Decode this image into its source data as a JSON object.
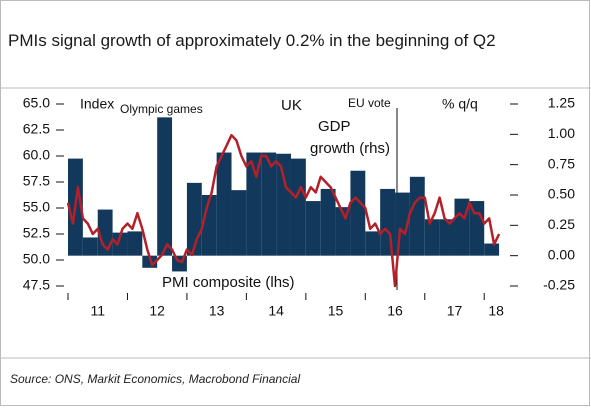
{
  "chart_data": {
    "type": "bar_line",
    "title": "PMIs signal growth of approximately 0.2% in the beginning of Q2",
    "source": "Source: ONS, Markit Economics, Macrobond Financial",
    "annotations": [
      "Index",
      "Olympic games",
      "UK",
      "EU vote",
      "% q/q",
      "GDP",
      "growth (rhs)",
      "PMI composite (lhs)"
    ],
    "xlim": [
      2011,
      2018.4
    ],
    "xticks": [
      {
        "value": 2011.5,
        "label": "11"
      },
      {
        "value": 2012.5,
        "label": "12"
      },
      {
        "value": 2013.5,
        "label": "13"
      },
      {
        "value": 2014.5,
        "label": "14"
      },
      {
        "value": 2015.5,
        "label": "15"
      },
      {
        "value": 2016.5,
        "label": "16"
      },
      {
        "value": 2017.5,
        "label": "17"
      },
      {
        "value": 2018.2,
        "label": "18"
      }
    ],
    "ylim": [
      47.5,
      65.0
    ],
    "yticks": [
      {
        "value": 65.0,
        "label": "65.0"
      },
      62.5,
      {
        "value": 60.0,
        "label": "60.0"
      },
      57.5,
      {
        "value": 55.0,
        "label": "55.0"
      },
      52.5,
      {
        "value": 50.0,
        "label": "50.0"
      },
      47.5
    ],
    "y2lim": [
      -0.25,
      1.25
    ],
    "y2ticks": [
      1.25,
      {
        "value": 1.0,
        "label": "1.00"
      },
      0.75,
      {
        "value": 0.5,
        "label": "0.50"
      },
      0.25,
      {
        "value": 0.0,
        "label": "0.00"
      },
      -0.25
    ],
    "series": [
      {
        "name": "GDP growth (rhs)",
        "kind": "bar",
        "axis": "y2",
        "color": "#12385c",
        "x": [
          2011,
          2011.25,
          2011.5,
          2011.75,
          2012,
          2012.25,
          2012.5,
          2012.75,
          2013,
          2013.25,
          2013.5,
          2013.75,
          2014,
          2014.25,
          2014.5,
          2014.75,
          2015,
          2015.25,
          2015.5,
          2015.75,
          2016,
          2016.25,
          2016.5,
          2016.75,
          2017,
          2017.25,
          2017.5,
          2017.75,
          2018
        ],
        "values": [
          0.8,
          0.15,
          0.38,
          0.19,
          0.2,
          -0.1,
          1.14,
          -0.13,
          0.6,
          0.5,
          0.85,
          0.54,
          0.85,
          0.85,
          0.84,
          0.8,
          0.45,
          0.55,
          0.4,
          0.7,
          0.2,
          0.55,
          0.52,
          0.65,
          0.3,
          0.3,
          0.47,
          0.45,
          0.1
        ]
      },
      {
        "name": "PMI composite (lhs)",
        "kind": "line",
        "color": "#b3202a",
        "x": [
          2011,
          2011.083,
          2011.167,
          2011.25,
          2011.333,
          2011.417,
          2011.5,
          2011.583,
          2011.667,
          2011.75,
          2011.833,
          2011.917,
          2012,
          2012.083,
          2012.167,
          2012.25,
          2012.333,
          2012.417,
          2012.5,
          2012.583,
          2012.667,
          2012.75,
          2012.833,
          2012.917,
          2013,
          2013.083,
          2013.167,
          2013.25,
          2013.333,
          2013.417,
          2013.5,
          2013.583,
          2013.667,
          2013.75,
          2013.833,
          2013.917,
          2014,
          2014.083,
          2014.167,
          2014.25,
          2014.333,
          2014.417,
          2014.5,
          2014.583,
          2014.667,
          2014.75,
          2014.833,
          2014.917,
          2015,
          2015.083,
          2015.167,
          2015.25,
          2015.333,
          2015.417,
          2015.5,
          2015.583,
          2015.667,
          2015.75,
          2015.833,
          2015.917,
          2016,
          2016.083,
          2016.167,
          2016.25,
          2016.333,
          2016.417,
          2016.5,
          2016.583,
          2016.667,
          2016.75,
          2016.833,
          2016.917,
          2017,
          2017.083,
          2017.167,
          2017.25,
          2017.333,
          2017.417,
          2017.5,
          2017.583,
          2017.667,
          2017.75,
          2017.833,
          2017.917,
          2018,
          2018.083,
          2018.167,
          2018.25
        ],
        "values": [
          55.5,
          53.5,
          57.0,
          54.0,
          53.5,
          52.5,
          53.0,
          51.5,
          51.0,
          52.0,
          51.5,
          53.0,
          53.5,
          53.0,
          54.5,
          53.0,
          51.0,
          49.5,
          50.0,
          50.5,
          51.5,
          51.0,
          50.0,
          49.8,
          51.0,
          50.5,
          52.0,
          53.0,
          55.0,
          56.5,
          59.0,
          60.0,
          61.0,
          62.0,
          61.5,
          60.0,
          59.0,
          59.5,
          58.0,
          60.0,
          60.0,
          59.0,
          59.5,
          59.0,
          57.0,
          56.5,
          56.0,
          57.0,
          56.0,
          57.0,
          56.5,
          58.0,
          57.5,
          57.0,
          56.0,
          55.0,
          54.0,
          55.5,
          56.0,
          55.5,
          55.0,
          53.0,
          53.5,
          52.5,
          53.0,
          52.5,
          47.5,
          53.0,
          52.5,
          54.5,
          55.5,
          56.0,
          56.0,
          53.5,
          54.5,
          56.0,
          54.0,
          53.5,
          54.0,
          54.5,
          54.0,
          55.5,
          54.5,
          54.5,
          53.5,
          54.0,
          51.5,
          52.5
        ]
      }
    ]
  }
}
